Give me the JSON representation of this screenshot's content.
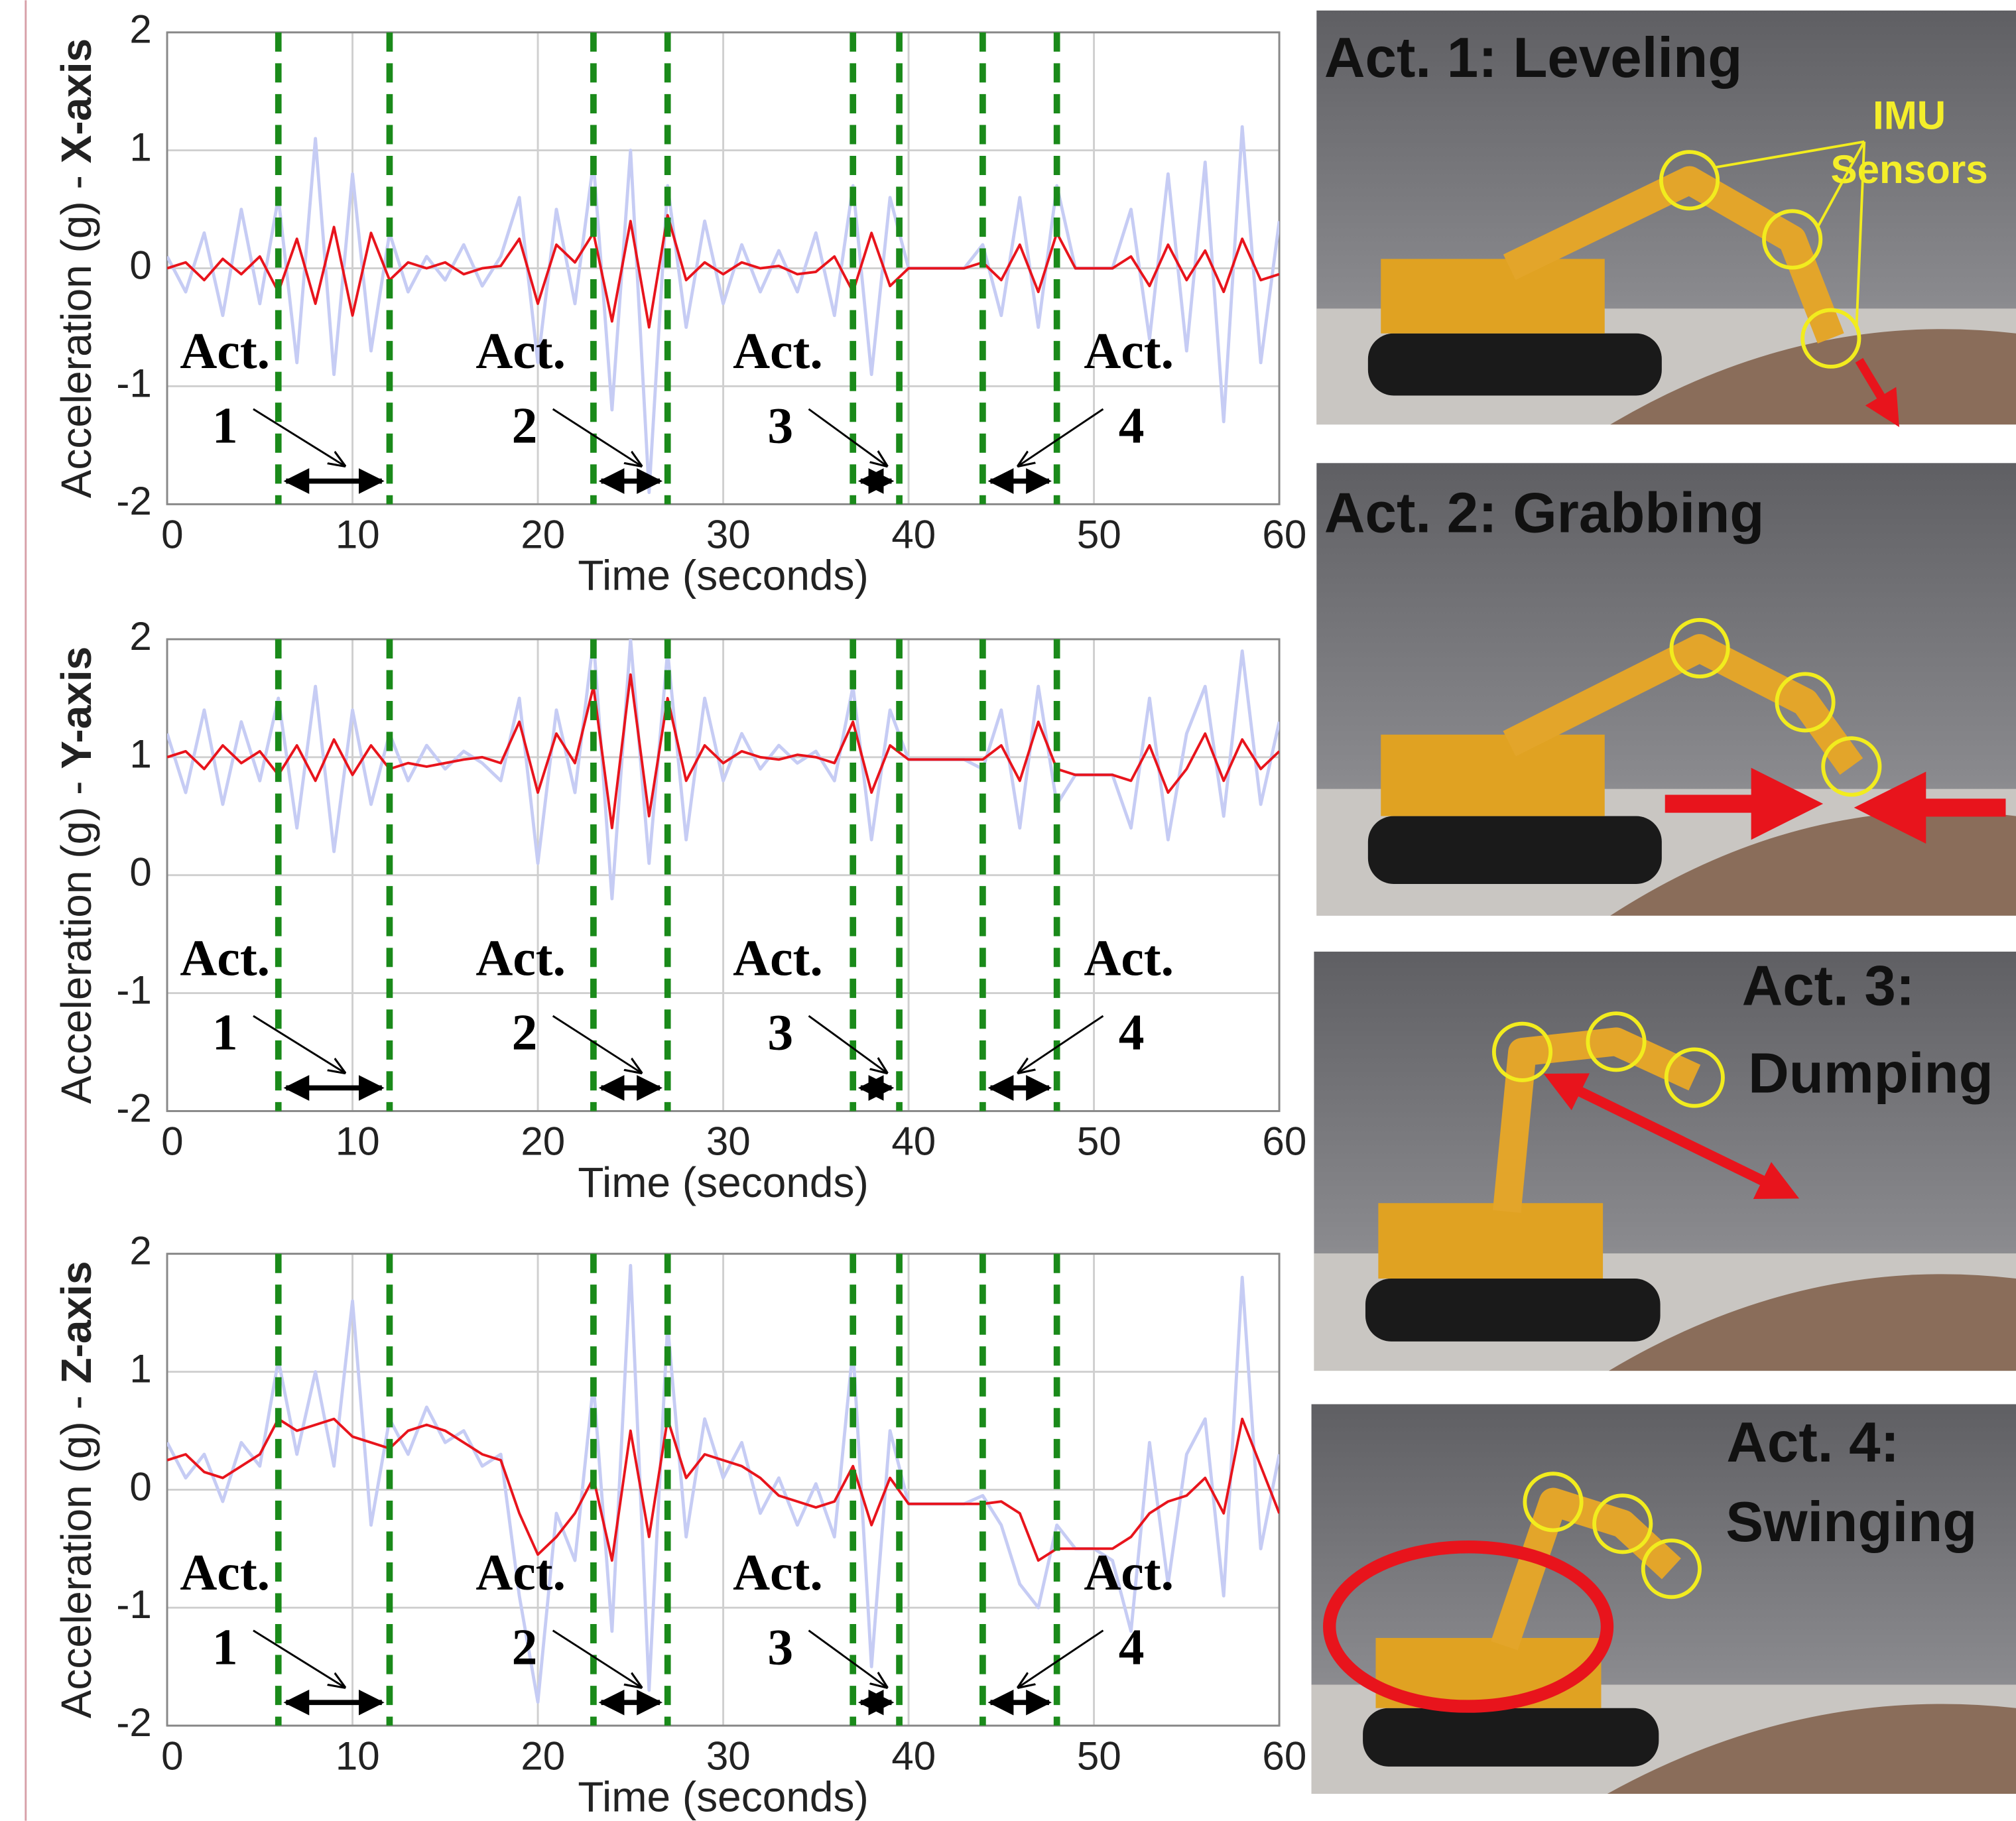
{
  "chart_data": [
    {
      "type": "line",
      "ylabel": "Acceleration (g) - ",
      "ylabel_axis": "X-axis",
      "xlabel": "Time (seconds)",
      "xlim": [
        0,
        60
      ],
      "xticks": [
        0,
        10,
        20,
        30,
        40,
        50,
        60
      ],
      "ylim": [
        -2,
        2
      ],
      "yticks": [
        -2,
        -1,
        0,
        1,
        2
      ],
      "grid": true,
      "x": [
        0,
        1,
        2,
        3,
        4,
        5,
        6,
        7,
        8,
        9,
        10,
        11,
        12,
        13,
        14,
        15,
        16,
        17,
        18,
        19,
        20,
        21,
        22,
        23,
        24,
        25,
        26,
        27,
        28,
        29,
        30,
        31,
        32,
        33,
        34,
        35,
        36,
        37,
        38,
        39,
        40,
        41,
        42,
        43,
        44,
        45,
        46,
        47,
        48,
        49,
        50,
        51,
        52,
        53,
        54,
        55,
        56,
        57,
        58,
        59,
        60
      ],
      "series": [
        {
          "color": "#c6ccf4",
          "values": [
            0.1,
            -0.2,
            0.3,
            -0.4,
            0.5,
            -0.3,
            0.6,
            -0.8,
            1.1,
            -0.9,
            0.8,
            -0.7,
            0.3,
            -0.2,
            0.1,
            -0.1,
            0.2,
            -0.15,
            0.1,
            0.6,
            -0.8,
            0.5,
            -0.3,
            0.9,
            -1.2,
            1.0,
            -1.9,
            0.7,
            -0.5,
            0.4,
            -0.3,
            0.2,
            -0.2,
            0.15,
            -0.2,
            0.3,
            -0.4,
            0.7,
            -0.9,
            0.6,
            0,
            0,
            0,
            0,
            0.2,
            -0.4,
            0.6,
            -0.5,
            0.7,
            0,
            0,
            0,
            0.5,
            -0.6,
            0.8,
            -0.7,
            0.9,
            -1.3,
            1.2,
            -0.8,
            0.4
          ]
        },
        {
          "color": "#e8141c",
          "values": [
            0,
            0.05,
            -0.1,
            0.08,
            -0.05,
            0.1,
            -0.2,
            0.25,
            -0.3,
            0.35,
            -0.4,
            0.3,
            -0.1,
            0.05,
            0,
            0.05,
            -0.05,
            0,
            0.02,
            0.25,
            -0.3,
            0.2,
            0.05,
            0.3,
            -0.45,
            0.4,
            -0.5,
            0.45,
            -0.1,
            0.05,
            -0.05,
            0.05,
            0,
            0.02,
            -0.05,
            -0.03,
            0.1,
            -0.2,
            0.3,
            -0.15,
            0,
            0,
            0,
            0,
            0.05,
            -0.1,
            0.2,
            -0.2,
            0.3,
            0,
            0,
            0,
            0.1,
            -0.15,
            0.2,
            -0.1,
            0.15,
            -0.2,
            0.25,
            -0.1,
            -0.05
          ]
        }
      ],
      "activity_bounds": [
        [
          6,
          12
        ],
        [
          23,
          27
        ],
        [
          37,
          39.5
        ],
        [
          44,
          48
        ]
      ],
      "bound_color": "#1a8a1a",
      "annotations": [
        {
          "text": "Act.",
          "number": "1"
        },
        {
          "text": "Act.",
          "number": "2"
        },
        {
          "text": "Act.",
          "number": "3"
        },
        {
          "text": "Act.",
          "number": "4"
        }
      ]
    },
    {
      "type": "line",
      "ylabel": "Acceleration (g) - ",
      "ylabel_axis": "Y-axis",
      "xlabel": "Time (seconds)",
      "xlim": [
        0,
        60
      ],
      "xticks": [
        0,
        10,
        20,
        30,
        40,
        50,
        60
      ],
      "ylim": [
        -2,
        2
      ],
      "yticks": [
        -2,
        -1,
        0,
        1,
        2
      ],
      "grid": true,
      "x": [
        0,
        1,
        2,
        3,
        4,
        5,
        6,
        7,
        8,
        9,
        10,
        11,
        12,
        13,
        14,
        15,
        16,
        17,
        18,
        19,
        20,
        21,
        22,
        23,
        24,
        25,
        26,
        27,
        28,
        29,
        30,
        31,
        32,
        33,
        34,
        35,
        36,
        37,
        38,
        39,
        40,
        41,
        42,
        43,
        44,
        45,
        46,
        47,
        48,
        49,
        50,
        51,
        52,
        53,
        54,
        55,
        56,
        57,
        58,
        59,
        60
      ],
      "series": [
        {
          "color": "#c6ccf4",
          "values": [
            1.2,
            0.7,
            1.4,
            0.6,
            1.3,
            0.8,
            1.5,
            0.4,
            1.6,
            0.2,
            1.4,
            0.6,
            1.2,
            0.8,
            1.1,
            0.9,
            1.05,
            0.95,
            0.8,
            1.5,
            0.1,
            1.4,
            0.7,
            2,
            -0.2,
            2,
            0.1,
            1.9,
            0.3,
            1.5,
            0.8,
            1.2,
            0.9,
            1.1,
            0.95,
            1.05,
            0.8,
            1.6,
            0.3,
            1.4,
            0.98,
            0.98,
            0.98,
            0.98,
            0.9,
            1.4,
            0.4,
            1.6,
            0.6,
            0.85,
            0.85,
            0.85,
            0.4,
            1.5,
            0.3,
            1.2,
            1.6,
            0.5,
            1.9,
            0.6,
            1.3
          ]
        },
        {
          "color": "#e8141c",
          "values": [
            1,
            1.05,
            0.9,
            1.1,
            0.95,
            1.05,
            0.85,
            1.1,
            0.8,
            1.15,
            0.85,
            1.1,
            0.9,
            0.95,
            0.92,
            0.95,
            0.98,
            1,
            0.95,
            1.3,
            0.7,
            1.2,
            0.95,
            1.6,
            0.4,
            1.7,
            0.5,
            1.5,
            0.8,
            1.1,
            0.95,
            1.05,
            1,
            0.98,
            1.02,
            1,
            0.95,
            1.3,
            0.7,
            1.1,
            0.98,
            0.98,
            0.98,
            0.98,
            0.98,
            1.1,
            0.8,
            1.3,
            0.9,
            0.85,
            0.85,
            0.85,
            0.8,
            1.1,
            0.7,
            0.9,
            1.2,
            0.8,
            1.15,
            0.9,
            1.05
          ]
        }
      ],
      "activity_bounds": [
        [
          6,
          12
        ],
        [
          23,
          27
        ],
        [
          37,
          39.5
        ],
        [
          44,
          48
        ]
      ],
      "bound_color": "#1a8a1a",
      "annotations": [
        {
          "text": "Act.",
          "number": "1"
        },
        {
          "text": "Act.",
          "number": "2"
        },
        {
          "text": "Act.",
          "number": "3"
        },
        {
          "text": "Act.",
          "number": "4"
        }
      ]
    },
    {
      "type": "line",
      "ylabel": "Acceleration (g) - ",
      "ylabel_axis": "Z-axis",
      "xlabel": "Time (seconds)",
      "xlim": [
        0,
        60
      ],
      "xticks": [
        0,
        10,
        20,
        30,
        40,
        50,
        60
      ],
      "ylim": [
        -2,
        2
      ],
      "yticks": [
        -2,
        -1,
        0,
        1,
        2
      ],
      "grid": true,
      "x": [
        0,
        1,
        2,
        3,
        4,
        5,
        6,
        7,
        8,
        9,
        10,
        11,
        12,
        13,
        14,
        15,
        16,
        17,
        18,
        19,
        20,
        21,
        22,
        23,
        24,
        25,
        26,
        27,
        28,
        29,
        30,
        31,
        32,
        33,
        34,
        35,
        36,
        37,
        38,
        39,
        40,
        41,
        42,
        43,
        44,
        45,
        46,
        47,
        48,
        49,
        50,
        51,
        52,
        53,
        54,
        55,
        56,
        57,
        58,
        59,
        60
      ],
      "series": [
        {
          "color": "#c6ccf4",
          "values": [
            0.4,
            0.1,
            0.3,
            -0.1,
            0.4,
            0.2,
            1.1,
            0.3,
            1.0,
            0.2,
            1.6,
            -0.3,
            0.6,
            0.3,
            0.7,
            0.4,
            0.5,
            0.2,
            0.3,
            -0.9,
            -1.8,
            -0.2,
            -0.6,
            0.9,
            -1.2,
            1.9,
            -1.7,
            1.4,
            -0.4,
            0.6,
            0.1,
            0.4,
            -0.2,
            0.1,
            -0.3,
            0.05,
            -0.4,
            1.2,
            -1.5,
            0.5,
            -0.12,
            -0.12,
            -0.12,
            -0.12,
            -0.05,
            -0.3,
            -0.8,
            -1.0,
            -0.3,
            -0.5,
            -0.5,
            -0.6,
            -1.2,
            0.4,
            -0.8,
            0.3,
            0.6,
            -0.9,
            1.8,
            -0.5,
            0.3
          ]
        },
        {
          "color": "#e8141c",
          "values": [
            0.25,
            0.3,
            0.15,
            0.1,
            0.2,
            0.3,
            0.6,
            0.5,
            0.55,
            0.6,
            0.45,
            0.4,
            0.35,
            0.5,
            0.55,
            0.5,
            0.4,
            0.3,
            0.25,
            -0.2,
            -0.55,
            -0.4,
            -0.2,
            0.1,
            -0.6,
            0.5,
            -0.4,
            0.6,
            0.1,
            0.3,
            0.25,
            0.2,
            0.1,
            -0.05,
            -0.1,
            -0.15,
            -0.1,
            0.2,
            -0.3,
            0.1,
            -0.12,
            -0.12,
            -0.12,
            -0.12,
            -0.12,
            -0.1,
            -0.2,
            -0.6,
            -0.5,
            -0.5,
            -0.5,
            -0.5,
            -0.4,
            -0.2,
            -0.1,
            -0.05,
            0.1,
            -0.2,
            0.6,
            0.2,
            -0.2
          ]
        }
      ],
      "activity_bounds": [
        [
          6,
          12
        ],
        [
          23,
          27
        ],
        [
          37,
          39.5
        ],
        [
          44,
          48
        ]
      ],
      "bound_color": "#1a8a1a",
      "annotations": [
        {
          "text": "Act.",
          "number": "1"
        },
        {
          "text": "Act.",
          "number": "2"
        },
        {
          "text": "Act.",
          "number": "3"
        },
        {
          "text": "Act.",
          "number": "4"
        }
      ]
    }
  ],
  "photos": [
    {
      "title": [
        "Act. 1: Leveling"
      ],
      "labels": [
        "IMU",
        "Sensors"
      ]
    },
    {
      "title": [
        "Act. 2: Grabbing"
      ]
    },
    {
      "title": [
        "Act. 3:",
        "Dumping"
      ]
    },
    {
      "title": [
        "Act. 4:",
        "Swinging"
      ]
    }
  ]
}
